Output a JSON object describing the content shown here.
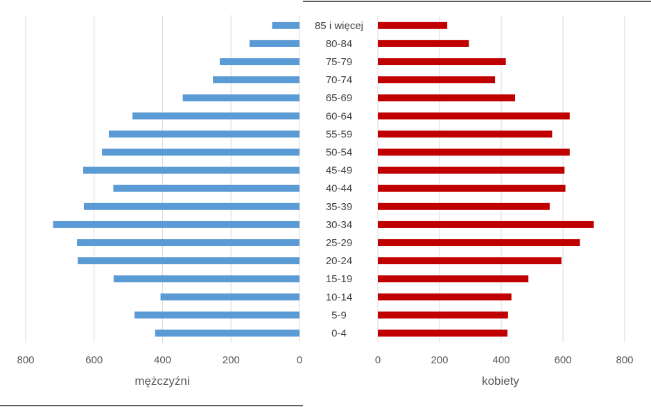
{
  "chart_data": [
    {
      "type": "bar",
      "orientation": "horizontal",
      "direction": "reversed",
      "xlabel": "mężczyźni",
      "xlim": [
        0,
        800
      ],
      "ticks": [
        "800",
        "600",
        "400",
        "200",
        "0"
      ],
      "tick_values": [
        800,
        600,
        400,
        200,
        0
      ],
      "grid": true,
      "color": "#5B9BD5",
      "categories": [
        "0-4",
        "5-9",
        "10-14",
        "15-19",
        "20-24",
        "25-29",
        "30-34",
        "35-39",
        "40-44",
        "45-49",
        "50-54",
        "55-59",
        "60-64",
        "65-69",
        "70-74",
        "75-79",
        "80-84",
        "85 i więcej"
      ],
      "values": [
        422,
        482,
        406,
        543,
        648,
        650,
        720,
        630,
        544,
        632,
        577,
        557,
        488,
        341,
        253,
        233,
        146,
        80
      ]
    },
    {
      "type": "bar",
      "orientation": "horizontal",
      "xlabel": "kobiety",
      "xlim": [
        0,
        800
      ],
      "ticks": [
        "0",
        "200",
        "400",
        "600",
        "800"
      ],
      "tick_values": [
        0,
        200,
        400,
        600,
        800
      ],
      "grid": true,
      "color": "#C00000",
      "categories": [
        "0-4",
        "5-9",
        "10-14",
        "15-19",
        "20-24",
        "25-29",
        "30-34",
        "35-39",
        "40-44",
        "45-49",
        "50-54",
        "55-59",
        "60-64",
        "65-69",
        "70-74",
        "75-79",
        "80-84",
        "85 i więcej"
      ],
      "values": [
        420,
        422,
        433,
        488,
        595,
        655,
        700,
        557,
        608,
        605,
        622,
        565,
        622,
        445,
        380,
        415,
        295,
        225
      ]
    }
  ]
}
